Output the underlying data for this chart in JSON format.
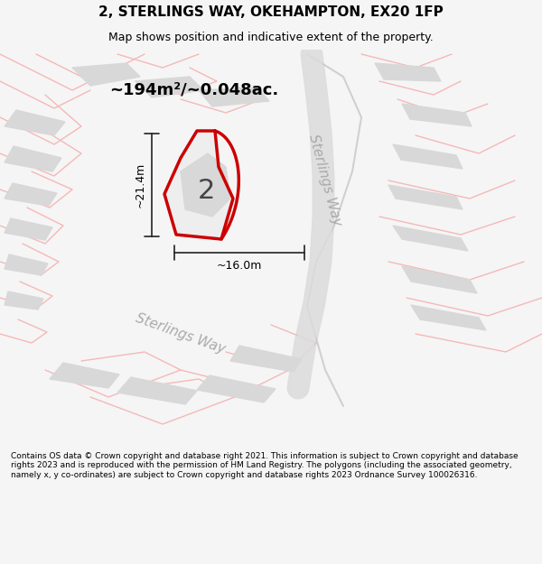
{
  "title_line1": "2, STERLINGS WAY, OKEHAMPTON, EX20 1FP",
  "title_line2": "Map shows position and indicative extent of the property.",
  "area_label": "~194m²/~0.048ac.",
  "width_label": "~16.0m",
  "height_label": "~21.4m",
  "plot_number": "2",
  "road_label_diagonal": "Sterlings Way",
  "road_label_bottom": "Sterlings Way",
  "footer_text": "Contains OS data © Crown copyright and database right 2021. This information is subject to Crown copyright and database rights 2023 and is reproduced with the permission of HM Land Registry. The polygons (including the associated geometry, namely x, y co-ordinates) are subject to Crown copyright and database rights 2023 Ordnance Survey 100026316.",
  "bg_color": "#f5f5f5",
  "map_bg": "#ffffff",
  "footer_bg": "#ffffff",
  "red_plot_color": "#cc0000",
  "gray_building_color": "#d8d8d8",
  "road_pink_color": "#f5b8b8",
  "road_gray_color": "#d0d0d0",
  "dim_line_color": "#222222",
  "road_text_color": "#aaaaaa",
  "title_fontsize": 11,
  "subtitle_fontsize": 9,
  "area_fontsize": 13,
  "plot_num_fontsize": 22,
  "dim_fontsize": 9,
  "road_label_fontsize": 11,
  "footer_fontsize": 6.5
}
